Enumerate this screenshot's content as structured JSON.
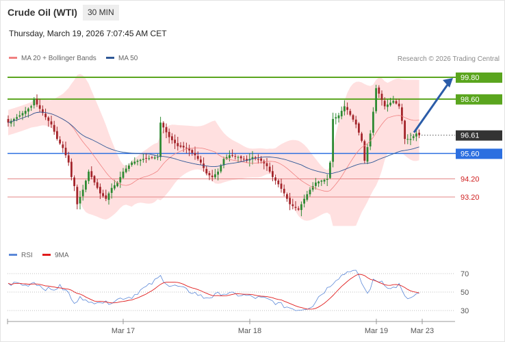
{
  "header": {
    "title": "Crude Oil (WTI)",
    "timeframe": "30 MIN",
    "datetime": "Thursday, March 19, 2026 7:07:45 AM CET"
  },
  "legend": {
    "ma20": "MA 20 + Bollinger Bands",
    "ma50": "MA 50",
    "credit": "Research © 2026 Trading Central",
    "rsi": "RSI",
    "ma9": "9MA"
  },
  "colors": {
    "up": "#2d8a32",
    "down": "#a3242a",
    "band": "#ffd6d6",
    "ma20": "#f08080",
    "ma50": "#2e5796",
    "resistance": "#5aa51e",
    "support": "#2c6fe0",
    "level_red": "#e38585",
    "price": "#333333",
    "arrow": "#2b5ca8",
    "rsi": "#5b88d8",
    "rsi_ma": "#e01b1b"
  },
  "chart_data": {
    "type": "candlestick",
    "timeframe": "30 MIN",
    "x_labels": [
      "Mar 17",
      "Mar 18",
      "Mar 19",
      "Mar 23"
    ],
    "ylim": [
      91.7,
      101.2
    ],
    "levels": [
      {
        "value": 99.8,
        "label": "99.80",
        "kind": "resistance"
      },
      {
        "value": 98.6,
        "label": "98.60",
        "kind": "resistance"
      },
      {
        "value": 96.61,
        "label": "96.61",
        "kind": "price"
      },
      {
        "value": 95.6,
        "label": "95.60",
        "kind": "support"
      },
      {
        "value": 94.2,
        "label": "94.20",
        "kind": "level"
      },
      {
        "value": 93.2,
        "label": "93.20",
        "kind": "level"
      }
    ],
    "anchors": [
      [
        0,
        97.3
      ],
      [
        4,
        97.7
      ],
      [
        8,
        98.2
      ],
      [
        9,
        98.6
      ],
      [
        10,
        98.3
      ],
      [
        13,
        97.6
      ],
      [
        15,
        97.2
      ],
      [
        17,
        96.4
      ],
      [
        19,
        95.9
      ],
      [
        21,
        95.1
      ],
      [
        22,
        94.3
      ],
      [
        23,
        93.8
      ],
      [
        24,
        92.8
      ],
      [
        26,
        93.6
      ],
      [
        28,
        94.6
      ],
      [
        30,
        94.0
      ],
      [
        32,
        93.4
      ],
      [
        34,
        93.1
      ],
      [
        36,
        93.7
      ],
      [
        38,
        94.0
      ],
      [
        40,
        94.6
      ],
      [
        43,
        95.1
      ],
      [
        47,
        95.3
      ],
      [
        52,
        95.4
      ],
      [
        53,
        97.3
      ],
      [
        56,
        96.5
      ],
      [
        59,
        96.0
      ],
      [
        62,
        95.9
      ],
      [
        65,
        95.5
      ],
      [
        67,
        95.1
      ],
      [
        69,
        94.5
      ],
      [
        71,
        94.3
      ],
      [
        73,
        94.6
      ],
      [
        75,
        95.3
      ],
      [
        77,
        95.5
      ],
      [
        80,
        95.4
      ],
      [
        83,
        95.2
      ],
      [
        85,
        95.4
      ],
      [
        88,
        95.2
      ],
      [
        90,
        94.9
      ],
      [
        92,
        94.3
      ],
      [
        94,
        93.9
      ],
      [
        96,
        93.4
      ],
      [
        98,
        92.8
      ],
      [
        101,
        92.5
      ],
      [
        103,
        93.1
      ],
      [
        105,
        93.6
      ],
      [
        107,
        94.0
      ],
      [
        109,
        94.1
      ],
      [
        111,
        94.2
      ],
      [
        112,
        95.1
      ],
      [
        113,
        97.5
      ],
      [
        115,
        97.7
      ],
      [
        117,
        98.2
      ],
      [
        118,
        98.0
      ],
      [
        121,
        97.2
      ],
      [
        123,
        96.3
      ],
      [
        124,
        95.2
      ],
      [
        126,
        96.7
      ],
      [
        127,
        97.9
      ],
      [
        128,
        99.2
      ],
      [
        129,
        98.9
      ],
      [
        131,
        98.2
      ],
      [
        134,
        98.5
      ],
      [
        136,
        98.2
      ],
      [
        137,
        97.4
      ],
      [
        138,
        96.4
      ],
      [
        140,
        96.4
      ],
      [
        142,
        96.7
      ],
      [
        143,
        96.61
      ]
    ],
    "bollinger": {
      "upper_range": [
        99.7,
        100.0
      ],
      "lower_range": [
        91.6,
        92.0
      ]
    },
    "rsi": {
      "ylim": [
        25,
        77
      ],
      "ticks": [
        70,
        50,
        30
      ],
      "anchors": [
        [
          0,
          58
        ],
        [
          3,
          60
        ],
        [
          6,
          57
        ],
        [
          9,
          61
        ],
        [
          12,
          55
        ],
        [
          15,
          52
        ],
        [
          18,
          56
        ],
        [
          21,
          49
        ],
        [
          23,
          36
        ],
        [
          25,
          47
        ],
        [
          28,
          37
        ],
        [
          31,
          41
        ],
        [
          34,
          38
        ],
        [
          37,
          41
        ],
        [
          40,
          44
        ],
        [
          43,
          45
        ],
        [
          46,
          52
        ],
        [
          49,
          57
        ],
        [
          51,
          62
        ],
        [
          53,
          67
        ],
        [
          56,
          57
        ],
        [
          59,
          56
        ],
        [
          62,
          52
        ],
        [
          65,
          49
        ],
        [
          68,
          44
        ],
        [
          71,
          45
        ],
        [
          74,
          49
        ],
        [
          77,
          48
        ],
        [
          80,
          47
        ],
        [
          83,
          46
        ],
        [
          86,
          44
        ],
        [
          89,
          43
        ],
        [
          92,
          40
        ],
        [
          95,
          36
        ],
        [
          98,
          33
        ],
        [
          101,
          31
        ],
        [
          104,
          33
        ],
        [
          106,
          36
        ],
        [
          108,
          45
        ],
        [
          111,
          54
        ],
        [
          114,
          64
        ],
        [
          117,
          70
        ],
        [
          119,
          74
        ],
        [
          121,
          72
        ],
        [
          123,
          60
        ],
        [
          125,
          48
        ],
        [
          127,
          62
        ],
        [
          130,
          62
        ],
        [
          133,
          53
        ],
        [
          136,
          58
        ],
        [
          138,
          44
        ],
        [
          140,
          43
        ],
        [
          142,
          47
        ],
        [
          143,
          47
        ]
      ]
    }
  }
}
